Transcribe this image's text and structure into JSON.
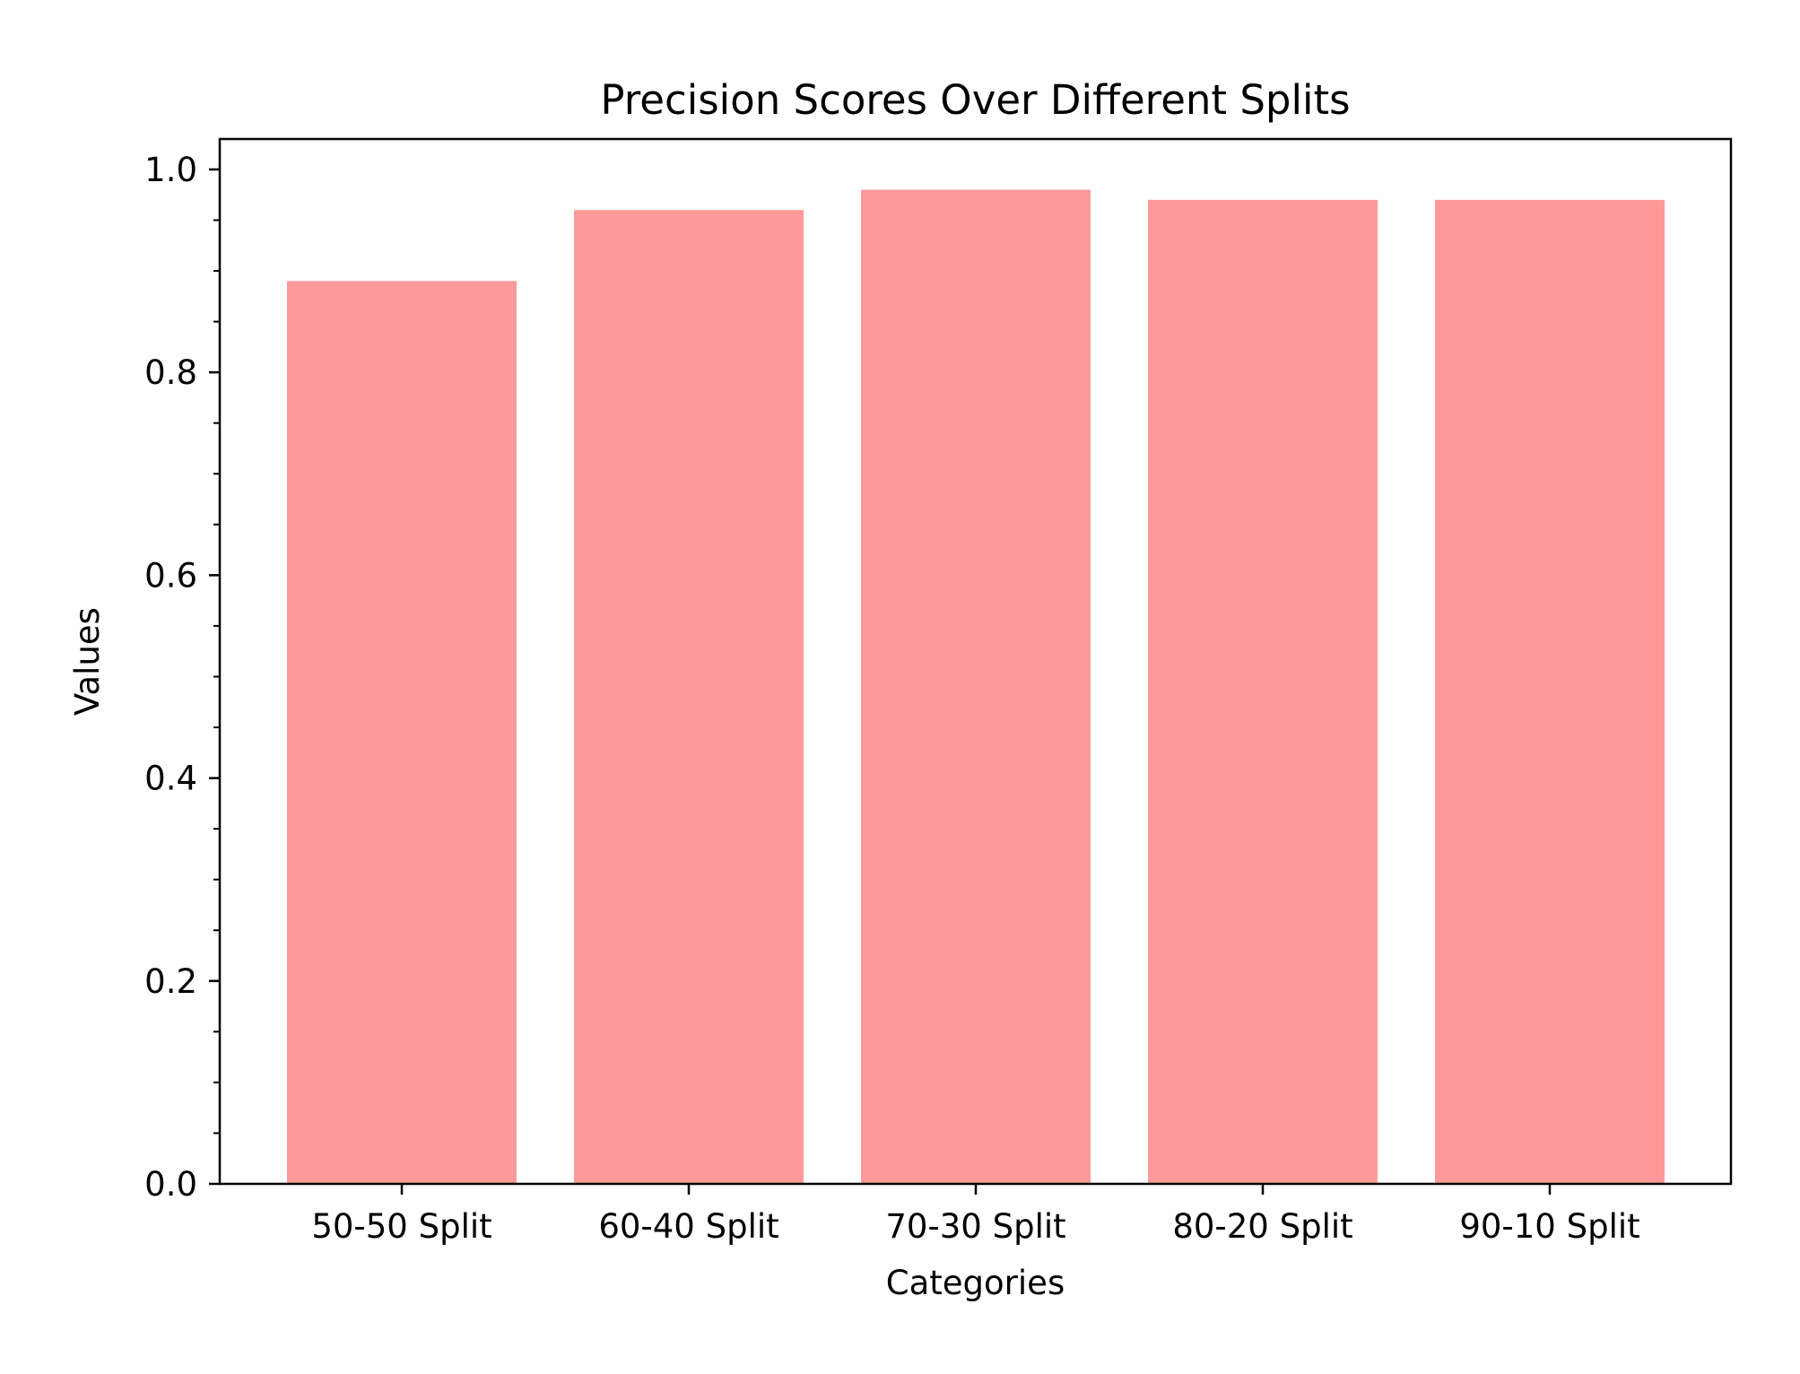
{
  "chart_data": {
    "type": "bar",
    "title": "Precision Scores Over Different Splits",
    "xlabel": "Categories",
    "ylabel": "Values",
    "categories": [
      "50-50 Split",
      "60-40 Split",
      "70-30 Split",
      "80-20 Split",
      "90-10 Split"
    ],
    "values": [
      0.89,
      0.96,
      0.98,
      0.97,
      0.97
    ],
    "ylim": [
      0,
      1.03
    ],
    "yticks": [
      0.0,
      0.2,
      0.4,
      0.6,
      0.8,
      1.0
    ],
    "ytick_labels": [
      "0.0",
      "0.2",
      "0.4",
      "0.6",
      "0.8",
      "1.0"
    ],
    "bar_color": "#ff9999",
    "grid": false,
    "legend": "none"
  }
}
